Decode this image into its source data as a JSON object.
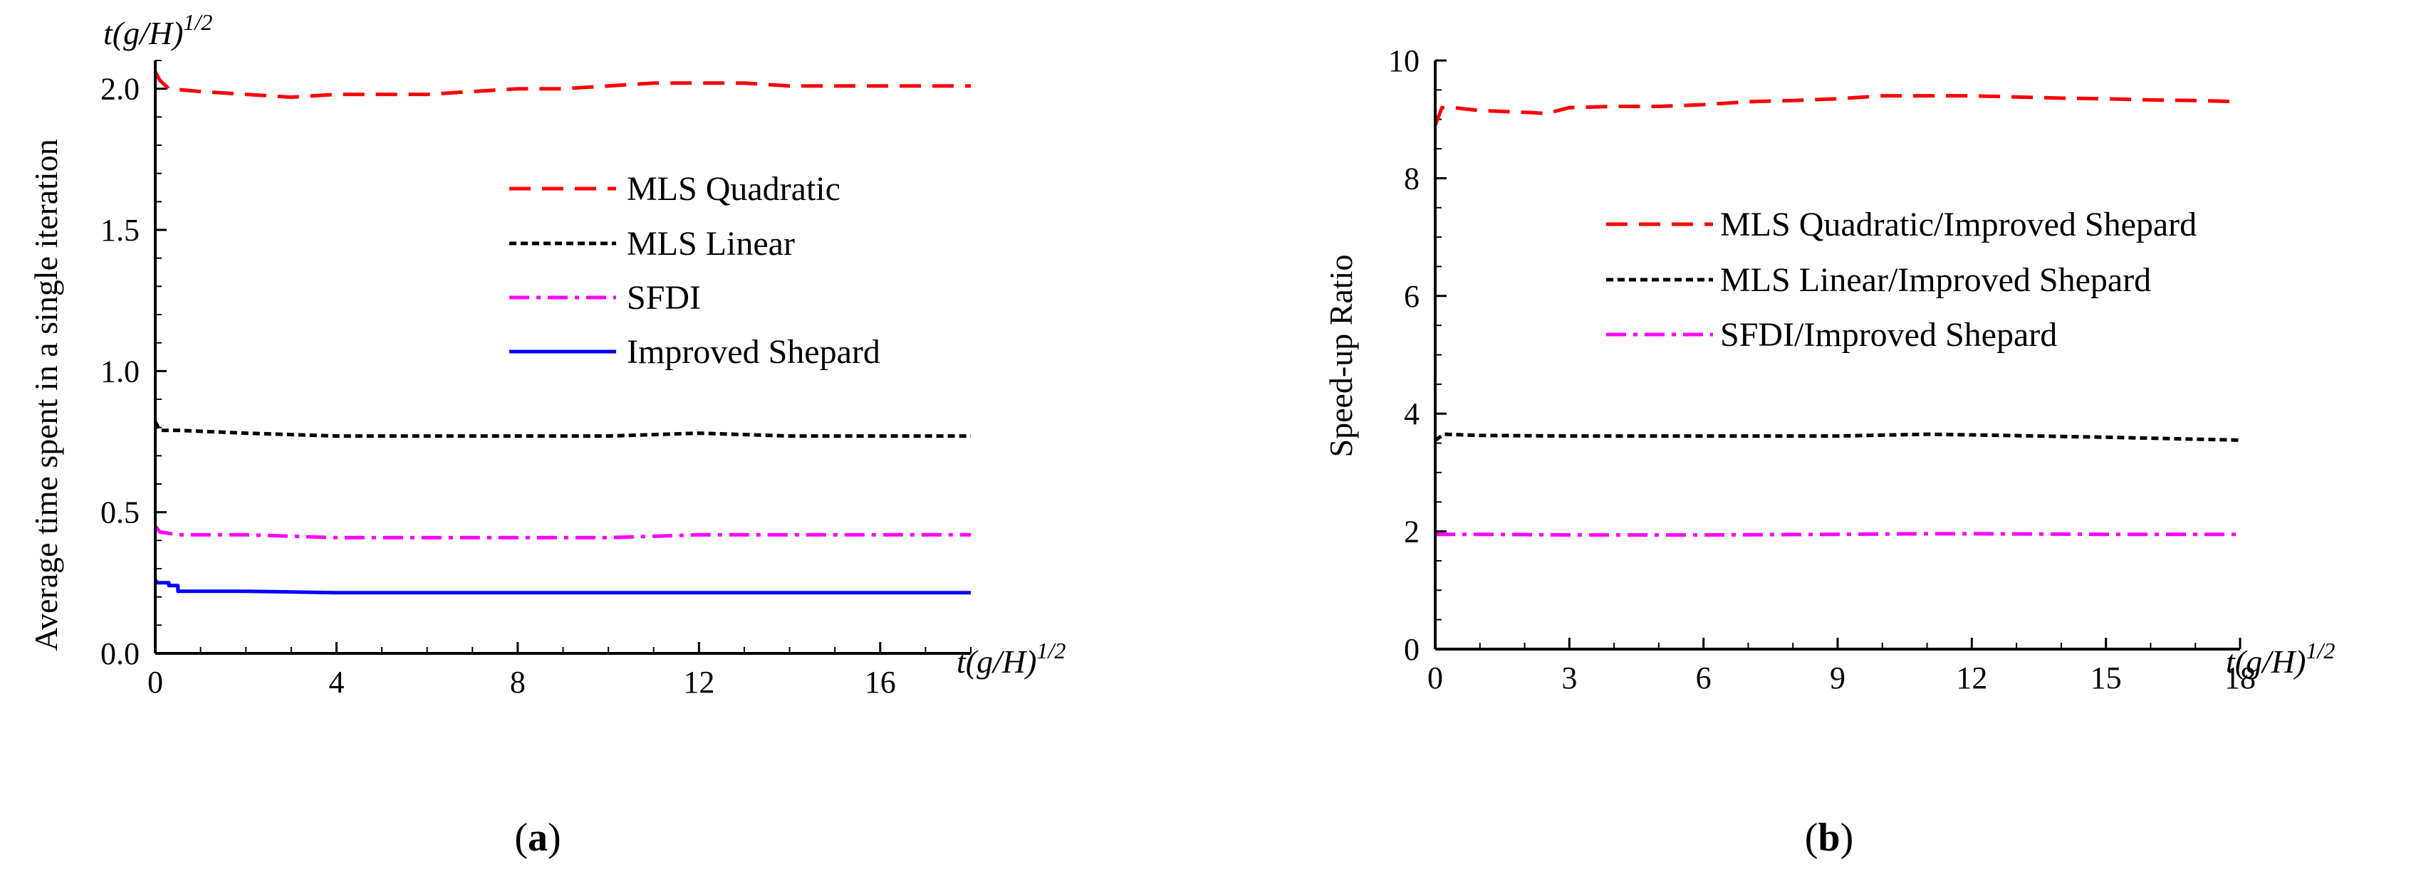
{
  "chart_data": [
    {
      "type": "line",
      "panel_label": "a",
      "title": "",
      "xlabel": "t(g/H)",
      "xlabel_sup": "1/2",
      "ylabel": "Average time spent in a single iteration",
      "y_unit_label": "t(g/H)",
      "y_unit_sup": "1/2",
      "xlim": [
        0,
        18
      ],
      "ylim": [
        0,
        2.1
      ],
      "xticks": [
        0,
        4,
        8,
        12,
        16
      ],
      "xticks_labels": [
        "0",
        "4",
        "8",
        "12",
        "16"
      ],
      "yticks": [
        0,
        0.5,
        1.0,
        1.5,
        2.0
      ],
      "yticks_labels": [
        "0.0",
        "0.5",
        "1.0",
        "1.5",
        "2.0"
      ],
      "legend_position": "upper-right",
      "series": [
        {
          "name": "MLS Quadratic",
          "color": "#ff0000",
          "style": "dashed",
          "x": [
            0,
            0.1,
            0.3,
            1,
            2,
            3,
            4,
            5,
            6,
            7,
            8,
            9,
            10,
            11,
            12,
            13,
            14,
            15,
            16,
            17,
            18
          ],
          "y": [
            2.06,
            2.03,
            2.0,
            1.99,
            1.98,
            1.97,
            1.98,
            1.98,
            1.98,
            1.99,
            2.0,
            2.0,
            2.01,
            2.02,
            2.02,
            2.02,
            2.01,
            2.01,
            2.01,
            2.01,
            2.01
          ]
        },
        {
          "name": "MLS Linear",
          "color": "#000000",
          "style": "dotted",
          "x": [
            0,
            0.1,
            0.5,
            2,
            4,
            6,
            8,
            10,
            12,
            14,
            16,
            18
          ],
          "y": [
            0.82,
            0.79,
            0.79,
            0.78,
            0.77,
            0.77,
            0.77,
            0.77,
            0.78,
            0.77,
            0.77,
            0.77
          ]
        },
        {
          "name": "SFDI",
          "color": "#ff00ff",
          "style": "dashdot",
          "x": [
            0,
            0.1,
            0.5,
            2,
            4,
            6,
            8,
            10,
            12,
            14,
            16,
            18
          ],
          "y": [
            0.45,
            0.43,
            0.42,
            0.42,
            0.41,
            0.41,
            0.41,
            0.41,
            0.42,
            0.42,
            0.42,
            0.42
          ]
        },
        {
          "name": "Improved Shepard",
          "color": "#0000ff",
          "style": "solid",
          "x": [
            0,
            0.05,
            0.3,
            0.3,
            0.5,
            0.5,
            2,
            4,
            6,
            8,
            10,
            12,
            14,
            16,
            18
          ],
          "y": [
            0.26,
            0.25,
            0.25,
            0.24,
            0.24,
            0.22,
            0.22,
            0.215,
            0.215,
            0.215,
            0.215,
            0.215,
            0.215,
            0.215,
            0.215
          ]
        }
      ]
    },
    {
      "type": "line",
      "panel_label": "b",
      "title": "",
      "xlabel": "t(g/H)",
      "xlabel_sup": "1/2",
      "ylabel": "Speed-up Ratio",
      "xlim": [
        0,
        18
      ],
      "ylim": [
        0,
        10
      ],
      "xticks": [
        0,
        3,
        6,
        9,
        12,
        15,
        18
      ],
      "xticks_labels": [
        "0",
        "3",
        "6",
        "9",
        "12",
        "15",
        "18"
      ],
      "yticks": [
        0,
        2,
        4,
        6,
        8,
        10
      ],
      "yticks_labels": [
        "0",
        "2",
        "4",
        "6",
        "8",
        "10"
      ],
      "legend_position": "upper-right",
      "series": [
        {
          "name": "MLS Quadratic/Improved Shepard",
          "color": "#ff0000",
          "style": "dashed",
          "x": [
            0,
            0.15,
            0.4,
            1,
            2,
            2.5,
            3,
            4,
            5,
            6,
            7,
            8,
            9,
            10,
            11,
            12,
            13,
            14,
            15,
            16,
            17,
            18
          ],
          "y": [
            8.9,
            9.2,
            9.2,
            9.15,
            9.12,
            9.1,
            9.2,
            9.22,
            9.22,
            9.25,
            9.3,
            9.32,
            9.35,
            9.4,
            9.4,
            9.4,
            9.38,
            9.36,
            9.35,
            9.33,
            9.32,
            9.3
          ]
        },
        {
          "name": "MLS Linear/Improved Shepard",
          "color": "#000000",
          "style": "dotted",
          "x": [
            0,
            0.2,
            1,
            3,
            6,
            9,
            11,
            12,
            15,
            18
          ],
          "y": [
            3.55,
            3.65,
            3.63,
            3.62,
            3.62,
            3.62,
            3.65,
            3.64,
            3.6,
            3.55
          ]
        },
        {
          "name": "SFDI/Improved Shepard",
          "color": "#ff00ff",
          "style": "dashdot",
          "x": [
            0,
            1,
            3,
            6,
            9,
            11,
            12,
            15,
            18
          ],
          "y": [
            1.95,
            1.95,
            1.94,
            1.94,
            1.95,
            1.96,
            1.96,
            1.95,
            1.95
          ]
        }
      ]
    }
  ]
}
